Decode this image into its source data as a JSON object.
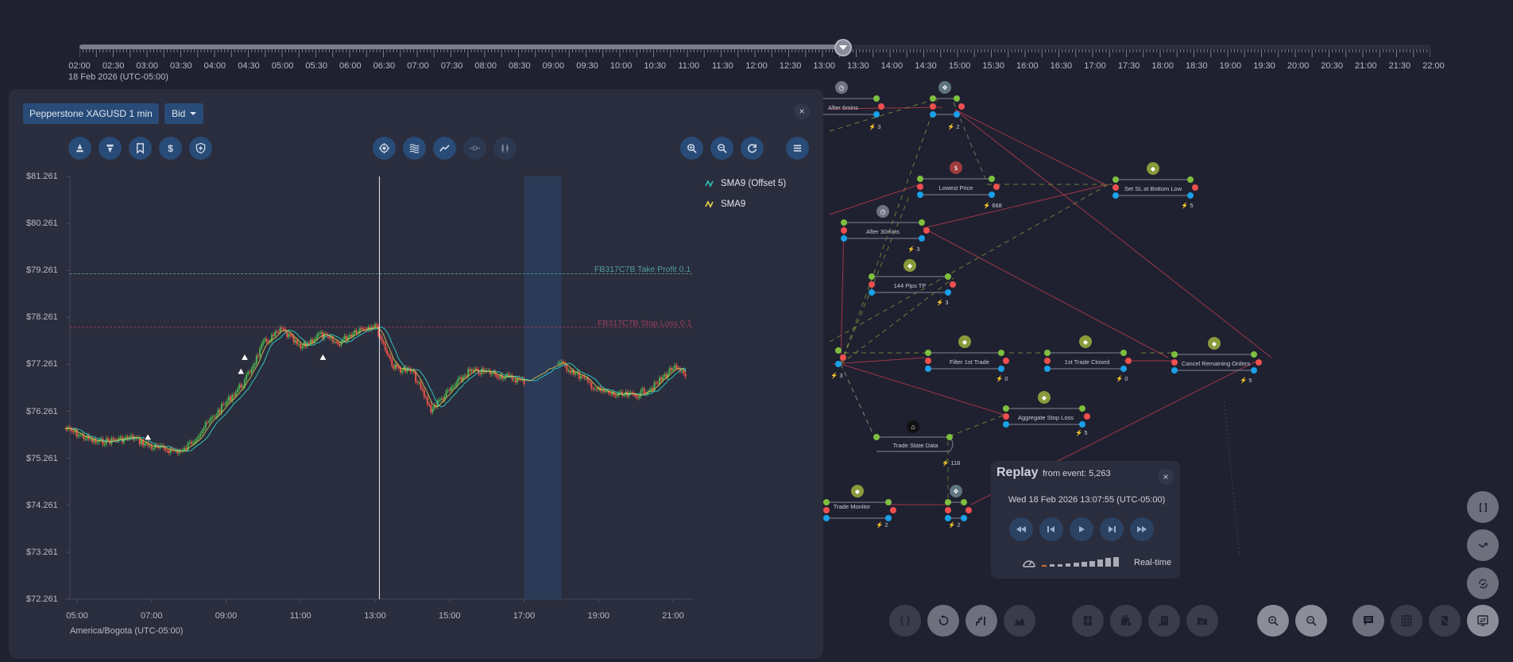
{
  "timeline": {
    "labels": [
      "02:00",
      "02:30",
      "03:00",
      "03:30",
      "04:00",
      "04:30",
      "05:00",
      "05:30",
      "06:00",
      "06:30",
      "07:00",
      "07:30",
      "08:00",
      "08:30",
      "09:00",
      "09:30",
      "10:00",
      "10:30",
      "11:00",
      "11:30",
      "12:00",
      "12:30",
      "13:00",
      "13:30",
      "14:00",
      "14:30",
      "15:00",
      "15:30",
      "16:00",
      "16:30",
      "17:00",
      "17:30",
      "18:00",
      "18:30",
      "19:00",
      "19:30",
      "20:00",
      "20:30",
      "21:00",
      "21:30",
      "22:00"
    ],
    "date": "18 Feb 2026 (UTC-05:00)",
    "current_position": "13:07"
  },
  "chart_panel": {
    "symbol": "Pepperstone XAGUSD 1 min",
    "price_type": "Bid",
    "close_icon": "×",
    "toolbar_left": [
      "buy-icon",
      "sell-icon",
      "bookmark-icon",
      "dollar-icon",
      "shield-icon"
    ],
    "toolbar_mid": [
      "crosshair-icon",
      "waves-icon",
      "line-chart-icon",
      "point-icon",
      "candles-icon"
    ],
    "toolbar_right": [
      "zoom-in-icon",
      "zoom-out-icon",
      "refresh-icon",
      "menu-icon"
    ],
    "legend": [
      {
        "label": "SMA9 (Offset 5)",
        "color": "#2ec4b6"
      },
      {
        "label": "SMA9",
        "color": "#e8d44d"
      }
    ],
    "timezone": "America/Bogota (UTC-05:00)"
  },
  "chart_data": {
    "type": "line",
    "title": "Pepperstone XAGUSD 1 min",
    "xlabel": "America/Bogota (UTC-05:00)",
    "ylabel": "",
    "y_ticks": [
      "$81.261",
      "$80.261",
      "$79.261",
      "$78.261",
      "$77.261",
      "$76.261",
      "$75.261",
      "$74.261",
      "$73.261",
      "$72.261"
    ],
    "x_ticks": [
      "05:00",
      "07:00",
      "09:00",
      "11:00",
      "13:00",
      "15:00",
      "17:00",
      "19:00",
      "21:00"
    ],
    "ylim": [
      72.261,
      81.261
    ],
    "grid": false,
    "legend_position": "top-right",
    "series": [
      {
        "name": "Price (candles)",
        "x": [
          "04:40",
          "05:30",
          "06:30",
          "07:00",
          "07:50",
          "08:30",
          "09:30",
          "10:00",
          "10:30",
          "11:00",
          "11:30",
          "12:00",
          "12:30",
          "13:00",
          "13:30",
          "14:00",
          "14:30",
          "15:00",
          "15:30",
          "16:00",
          "16:30",
          "17:00",
          "17:55",
          "18:20",
          "19:00",
          "19:30",
          "20:00",
          "20:30",
          "21:00",
          "21:20"
        ],
        "values": [
          75.9,
          75.6,
          75.7,
          75.5,
          75.4,
          76.0,
          76.9,
          77.7,
          78.0,
          77.6,
          77.9,
          77.7,
          78.0,
          78.1,
          77.2,
          77.1,
          76.3,
          76.7,
          77.1,
          77.1,
          77.0,
          76.9,
          77.3,
          77.1,
          76.7,
          76.6,
          76.6,
          76.8,
          77.2,
          77.0
        ]
      },
      {
        "name": "SMA9 (Offset 5)",
        "color": "#2ec4b6"
      },
      {
        "name": "SMA9",
        "color": "#e8d44d"
      }
    ],
    "annotations": [
      {
        "label": "FB317C7B Take Profit 0.1",
        "y": 79.19,
        "color": "#4d9c9a"
      },
      {
        "label": "FB317C7B Stop Loss 0.1",
        "y": 78.05,
        "color": "#9b3f5a"
      },
      {
        "label": "cursor",
        "x": "13:07"
      },
      {
        "label": "shaded region",
        "x_from": "17:00",
        "x_to": "18:00"
      }
    ]
  },
  "flow": {
    "nodes": [
      {
        "label": "After 6mins",
        "count": "3"
      },
      {
        "label": "",
        "count": "2"
      },
      {
        "label": "Lowest Price",
        "count": "668"
      },
      {
        "label": "Set SL at Bottom Low",
        "count": "5"
      },
      {
        "label": "After 30mins",
        "count": "3"
      },
      {
        "label": "144 Pips TP",
        "count": "3"
      },
      {
        "label": "Filter 1st Trade",
        "count": "0"
      },
      {
        "label": "1st Trade Closed",
        "count": "0"
      },
      {
        "label": "Cancel Remaining Orders",
        "count": "5"
      },
      {
        "label": "Aggregate Stop Loss",
        "count": "5"
      },
      {
        "label": "Trade State Data",
        "count": "118"
      },
      {
        "label": "Trade Monitor",
        "count": "2"
      },
      {
        "label": "",
        "count": "2"
      },
      {
        "label": "",
        "count": "3"
      }
    ]
  },
  "replay": {
    "title": "Replay",
    "from_event": "from event: 5,263",
    "datetime": "Wed 18 Feb 2026 13:07:55 (UTC-05:00)",
    "speed_label": "Real-time",
    "close_icon": "×"
  }
}
